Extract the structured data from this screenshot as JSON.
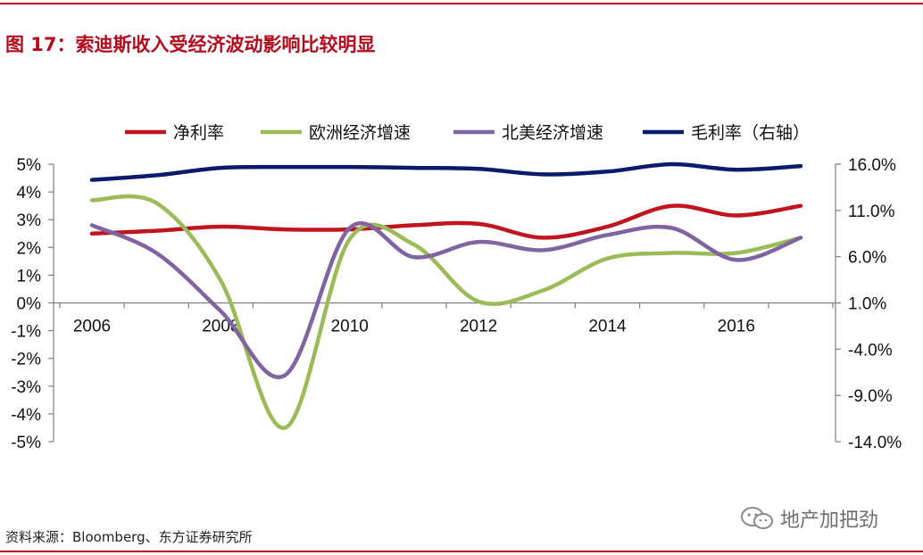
{
  "figure": {
    "title": "图 17：索迪斯收入受经济波动影响比较明显",
    "source": "资料来源：Bloomberg、东方证券研究所",
    "watermark": "地产加把劲",
    "watermark_icon": "wechat-icon"
  },
  "chart_data": {
    "type": "line",
    "x": [
      2006,
      2007,
      2008,
      2009,
      2010,
      2011,
      2012,
      2013,
      2014,
      2015,
      2016,
      2017
    ],
    "x_ticks": [
      "2006",
      "2008",
      "2010",
      "2012",
      "2014",
      "2016"
    ],
    "x_tick_values": [
      2006,
      2008,
      2010,
      2012,
      2014,
      2016
    ],
    "left_axis": {
      "ylim": [
        -5,
        5
      ],
      "tick_values": [
        5,
        4,
        3,
        2,
        1,
        0,
        -1,
        -2,
        -3,
        -4,
        -5
      ],
      "tick_labels": [
        "5%",
        "4%",
        "3%",
        "2%",
        "1%",
        "0%",
        "-1%",
        "-2%",
        "-3%",
        "-4%",
        "-5%"
      ]
    },
    "right_axis": {
      "ylim": [
        -14,
        16
      ],
      "tick_values": [
        16,
        11,
        6,
        1,
        -4,
        -9,
        -14
      ],
      "tick_labels": [
        "16.0%",
        "11.0%",
        "6.0%",
        "1.0%",
        "-4.0%",
        "-9.0%",
        "-14.0%"
      ]
    },
    "x_axis_at_y": 0,
    "grid": false,
    "legend_position": "top",
    "series": [
      {
        "name": "净利率",
        "axis": "left",
        "color": "#c0141f",
        "values": [
          2.5,
          2.6,
          2.75,
          2.65,
          2.65,
          2.8,
          2.85,
          2.35,
          2.75,
          3.5,
          3.15,
          3.5
        ]
      },
      {
        "name": "欧洲经济增速",
        "axis": "left",
        "color": "#9bbb59",
        "values": [
          3.7,
          3.6,
          0.8,
          -4.5,
          2.3,
          2.1,
          0.05,
          0.45,
          1.6,
          1.8,
          1.8,
          2.35
        ]
      },
      {
        "name": "北美经济增速",
        "axis": "left",
        "color": "#8064a2",
        "values": [
          2.8,
          1.8,
          -0.3,
          -2.6,
          2.7,
          1.65,
          2.2,
          1.9,
          2.45,
          2.7,
          1.55,
          2.35
        ]
      },
      {
        "name": "毛利率（右轴）",
        "axis": "right",
        "color": "#0b1a6b",
        "values": [
          14.3,
          14.8,
          15.6,
          15.7,
          15.7,
          15.6,
          15.5,
          14.9,
          15.2,
          16.0,
          15.4,
          15.8
        ]
      }
    ]
  }
}
